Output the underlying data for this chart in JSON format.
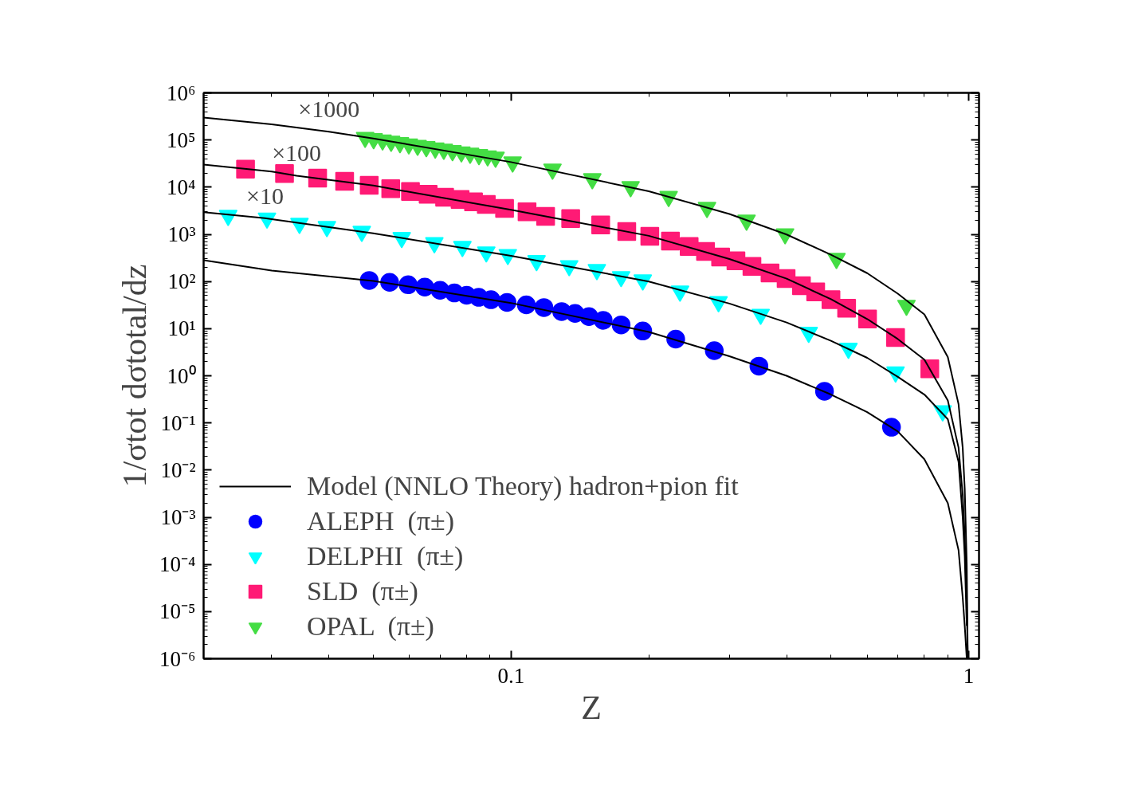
{
  "chart_data": {
    "type": "scatter",
    "xlabel": "Z",
    "ylabel": "1/σtot dσtotal/dz",
    "log": "xy",
    "grid": false,
    "legend": "bottom left",
    "xlim": [
      0.0213,
      1.053
    ],
    "xticks": [
      0.1,
      1
    ],
    "ylim": [
      1e-06,
      1000000.0
    ],
    "yticks": [
      {
        "value": 1000000.0,
        "label": "10⁶"
      },
      {
        "value": 100000.0,
        "label": "10⁵"
      },
      {
        "value": 10000.0,
        "label": "10⁴"
      },
      {
        "value": 1000.0,
        "label": "10³"
      },
      {
        "value": 100.0,
        "label": "10²"
      },
      {
        "value": 10,
        "label": "10¹"
      },
      {
        "value": 1,
        "label": "10⁰"
      },
      {
        "value": 0.1,
        "label": "10⁻¹"
      },
      {
        "value": 0.01,
        "label": "10⁻²"
      },
      {
        "value": 0.001,
        "label": "10⁻³"
      },
      {
        "value": 0.0001,
        "label": "10⁻⁴"
      },
      {
        "value": 1e-05,
        "label": "10⁻⁵"
      },
      {
        "value": 1e-06,
        "label": "10⁻⁶"
      }
    ],
    "annotations": [
      {
        "text": "×1000",
        "x": 0.04,
        "y": 150000
      },
      {
        "text": "×100",
        "x": 0.034,
        "y": 17500
      },
      {
        "text": "×10",
        "x": 0.029,
        "y": 2200
      }
    ],
    "series": [
      {
        "type": "line",
        "name": "Model (NNLO Theory) hadron+pion fit",
        "color": "#000000",
        "line_style": "solid",
        "x": [
          0.0213,
          0.03,
          0.05,
          0.1,
          0.2,
          0.3,
          0.4,
          0.5,
          0.6,
          0.7,
          0.8,
          0.9,
          0.95,
          0.97,
          0.98,
          0.99
        ],
        "values": [
          282,
          170,
          103,
          35,
          8.5,
          2.6,
          1.0,
          0.4,
          0.17,
          0.066,
          0.017,
          0.002,
          0.0002,
          2e-05,
          5e-06,
          1e-06
        ]
      },
      {
        "type": "line",
        "color": "#000000",
        "line_style": "solid",
        "x": [
          0.0213,
          0.029,
          0.03,
          0.05,
          0.1,
          0.2,
          0.3,
          0.4,
          0.5,
          0.6,
          0.7,
          0.8,
          0.9,
          0.95,
          0.97,
          0.98,
          0.99
        ],
        "values": [
          2950,
          2200,
          2100,
          1050,
          350,
          100,
          34,
          13.5,
          5.5,
          2.4,
          0.95,
          0.4,
          0.12,
          0.015,
          0.001,
          0.00015,
          5e-06
        ]
      },
      {
        "type": "line",
        "color": "#000000",
        "line_style": "solid",
        "x": [
          0.0213,
          0.03,
          0.034,
          0.05,
          0.1,
          0.2,
          0.3,
          0.4,
          0.5,
          0.6,
          0.7,
          0.8,
          0.9,
          0.95,
          0.97,
          0.98,
          0.99,
          0.995
        ],
        "values": [
          30000,
          21500,
          17500,
          10800,
          3300,
          930,
          300,
          115,
          42,
          16,
          6,
          2.2,
          0.3,
          0.03,
          0.003,
          0.0004,
          1.5e-05,
          1e-06
        ]
      },
      {
        "type": "line",
        "color": "#000000",
        "line_style": "solid",
        "x": [
          0.0213,
          0.03,
          0.04,
          0.05,
          0.1,
          0.2,
          0.3,
          0.4,
          0.5,
          0.6,
          0.7,
          0.8,
          0.9,
          0.95,
          0.97,
          0.98,
          0.99,
          0.995
        ],
        "values": [
          300000,
          215000,
          150000,
          108000,
          34000,
          8200,
          2700,
          990,
          370,
          150,
          55,
          20,
          2.5,
          0.25,
          0.03,
          0.004,
          0.0001,
          1e-06
        ]
      },
      {
        "name": "ALEPH  (π±)",
        "color": "#0000ff",
        "marker": "circle",
        "x": [
          0.049,
          0.0543,
          0.0596,
          0.0648,
          0.07,
          0.0752,
          0.08,
          0.085,
          0.0904,
          0.098,
          0.108,
          0.118,
          0.129,
          0.138,
          0.148,
          0.159,
          0.174,
          0.194,
          0.229,
          0.278,
          0.348,
          0.484,
          0.678
        ],
        "values": [
          105,
          96,
          85,
          76,
          65,
          57,
          51,
          46,
          41,
          36,
          32,
          28,
          23,
          21,
          18,
          15,
          12,
          8.9,
          6.0,
          3.4,
          1.6,
          0.47,
          0.081
        ]
      },
      {
        "name": "DELPHI  (π±)",
        "color": "#00ffff",
        "marker": "triangle",
        "x": [
          0.0241,
          0.0293,
          0.0345,
          0.0396,
          0.0472,
          0.0577,
          0.068,
          0.0783,
          0.0883,
          0.0984,
          0.1137,
          0.134,
          0.154,
          0.174,
          0.194,
          0.234,
          0.284,
          0.351,
          0.447,
          0.546,
          0.692,
          0.877
        ],
        "values": [
          2500,
          2200,
          1700,
          1450,
          1150,
          850,
          660,
          550,
          420,
          370,
          275,
          215,
          178,
          126,
          107,
          62,
          37,
          20,
          8.3,
          3.8,
          1.2,
          0.18
        ]
      },
      {
        "name": "SLD  (π±)",
        "color": "#ff1a75",
        "marker": "square",
        "x": [
          0.0263,
          0.032,
          0.0378,
          0.0433,
          0.049,
          0.0546,
          0.0603,
          0.0659,
          0.0716,
          0.0774,
          0.0828,
          0.0883,
          0.0968,
          0.1084,
          0.119,
          0.135,
          0.157,
          0.179,
          0.201,
          0.223,
          0.245,
          0.266,
          0.287,
          0.31,
          0.336,
          0.368,
          0.399,
          0.431,
          0.463,
          0.5,
          0.541,
          0.601,
          0.692,
          0.822
        ],
        "values": [
          24000,
          19500,
          15500,
          13300,
          11000,
          9300,
          8100,
          7100,
          6100,
          5500,
          4900,
          4300,
          3550,
          3000,
          2400,
          2150,
          1580,
          1150,
          910,
          720,
          550,
          435,
          330,
          275,
          209,
          151,
          115,
          81,
          60,
          41,
          27,
          16,
          6.5,
          1.4
        ]
      },
      {
        "name": "OPAL  (π±)",
        "color": "#44dd44",
        "marker": "triangle",
        "x": [
          0.048,
          0.0501,
          0.0524,
          0.0547,
          0.0572,
          0.0598,
          0.0625,
          0.0653,
          0.0683,
          0.0713,
          0.0745,
          0.0779,
          0.0814,
          0.0851,
          0.0889,
          0.0925,
          0.1008,
          0.1232,
          0.1505,
          0.1825,
          0.221,
          0.268,
          0.327,
          0.397,
          0.514,
          0.731
        ],
        "values": [
          113000,
          106000,
          99500,
          93300,
          87300,
          81900,
          76700,
          71900,
          67400,
          63200,
          59200,
          55500,
          52000,
          48700,
          45700,
          42900,
          33900,
          24000,
          15000,
          10200,
          6300,
          3700,
          1990,
          1020,
          306,
          31
        ]
      }
    ]
  }
}
